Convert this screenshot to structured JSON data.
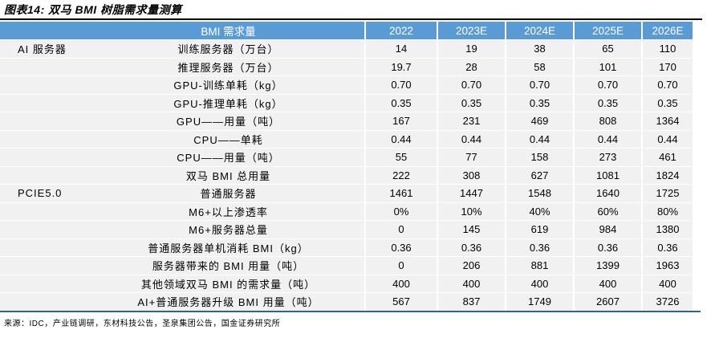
{
  "page": {
    "title": "图表14: 双马 BMI 树脂需求量测算",
    "source": "来源：IDC，产业链调研，东材科技公告，圣泉集团公告，国金证券研究所"
  },
  "colors": {
    "header_bg": "#5B9BD5",
    "header_text": "#FFFFFF",
    "row_bg": "#F1F1F1",
    "grid_lines": "#FFFFFF",
    "bottom_rule": "#31648C",
    "title_rule": "#000000",
    "text": "#000000"
  },
  "chart_data": {
    "type": "table",
    "title": "双马 BMI 树脂需求量测算",
    "corner_label": "BMI 需求量",
    "columns": [
      "2022",
      "2023E",
      "2024E",
      "2025E",
      "2026E"
    ],
    "groups": [
      {
        "category": "AI 服务器",
        "rows": [
          {
            "label": "训练服务器（万台）",
            "values": [
              "14",
              "19",
              "38",
              "65",
              "110"
            ]
          },
          {
            "label": "推理服务器（万台）",
            "values": [
              "19.7",
              "28",
              "58",
              "101",
              "170"
            ]
          },
          {
            "label": "GPU-训练单耗（kg）",
            "values": [
              "0.70",
              "0.70",
              "0.70",
              "0.70",
              "0.70"
            ]
          },
          {
            "label": "GPU-推理单耗（kg）",
            "values": [
              "0.35",
              "0.35",
              "0.35",
              "0.35",
              "0.35"
            ]
          },
          {
            "label": "GPU——用量（吨）",
            "values": [
              "167",
              "231",
              "469",
              "808",
              "1364"
            ]
          },
          {
            "label": "CPU——单耗",
            "values": [
              "0.44",
              "0.44",
              "0.44",
              "0.44",
              "0.44"
            ]
          },
          {
            "label": "CPU——用量（吨）",
            "values": [
              "55",
              "77",
              "158",
              "273",
              "461"
            ]
          },
          {
            "label": "双马 BMI 总用量",
            "values": [
              "222",
              "308",
              "627",
              "1081",
              "1824"
            ]
          }
        ]
      },
      {
        "category": "PCIE5.0",
        "rows": [
          {
            "label": "普通服务器",
            "values": [
              "1461",
              "1447",
              "1548",
              "1640",
              "1725"
            ]
          },
          {
            "label": "M6+以上渗透率",
            "values": [
              "0%",
              "10%",
              "40%",
              "60%",
              "80%"
            ]
          },
          {
            "label": "M6+服务器总量",
            "values": [
              "0",
              "145",
              "619",
              "984",
              "1380"
            ]
          },
          {
            "label": "普通服务器单机消耗 BMI（kg）",
            "values": [
              "0.36",
              "0.36",
              "0.36",
              "0.36",
              "0.36"
            ]
          },
          {
            "label": "服务器带来的 BMI 用量（吨）",
            "values": [
              "0",
              "206",
              "881",
              "1399",
              "1963"
            ]
          },
          {
            "label": "其他领域双马 BMI 的需求量（吨）",
            "values": [
              "400",
              "400",
              "400",
              "400",
              "400"
            ]
          },
          {
            "label": "AI+普通服务器升级 BMI 用量（吨）",
            "values": [
              "567",
              "837",
              "1749",
              "2607",
              "3726"
            ]
          }
        ]
      }
    ]
  }
}
